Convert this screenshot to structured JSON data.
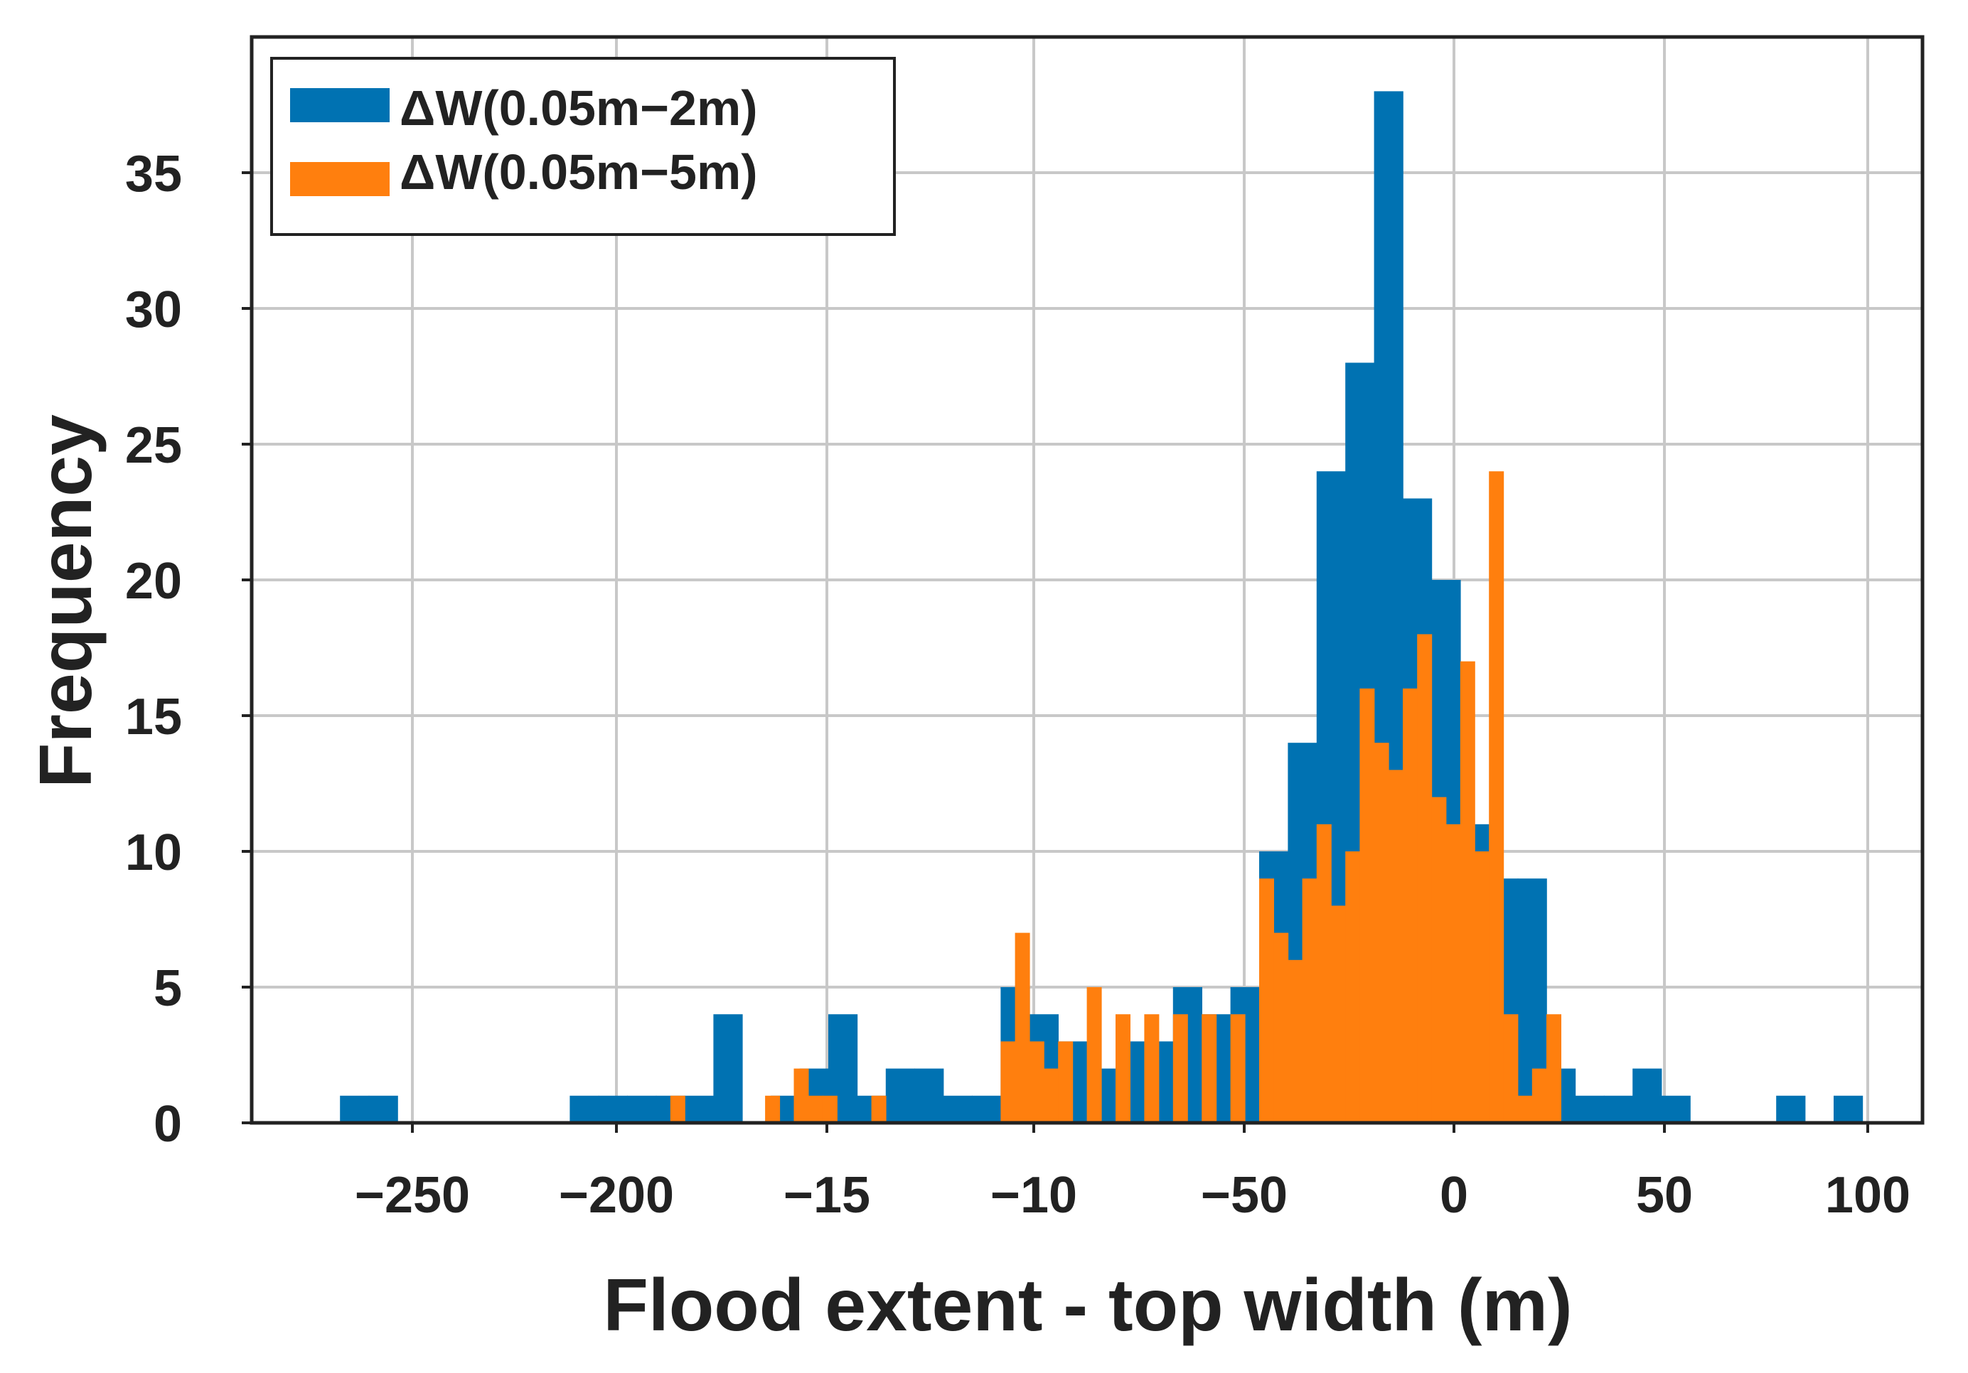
{
  "chart_data": {
    "type": "bar",
    "subtype": "overlaid-histogram",
    "title": "",
    "xlabel": "Flood extent - top width (m)",
    "ylabel": "Frequency",
    "ylim": [
      0,
      40
    ],
    "grid": true,
    "legend_position": "top-left",
    "x_tick_labels": [
      "−250",
      "−200",
      "−15",
      "−10",
      "−50",
      "0",
      "50",
      "100"
    ],
    "y_ticks": [
      0,
      5,
      10,
      15,
      20,
      25,
      30,
      35
    ],
    "y_tick_labels": [
      "0",
      "5",
      "10",
      "15",
      "20",
      "25",
      "30",
      "35"
    ],
    "series": [
      {
        "name": "ΔW(0.05m−2m)",
        "color": "#0072b2",
        "bins": [
          {
            "start": 0.5,
            "count": 1
          },
          {
            "start": 1.5,
            "count": 1
          },
          {
            "start": 8.5,
            "count": 1
          },
          {
            "start": 9.5,
            "count": 1
          },
          {
            "start": 10.5,
            "count": 1
          },
          {
            "start": 11.5,
            "count": 1
          },
          {
            "start": 12.5,
            "count": 1
          },
          {
            "start": 13.5,
            "count": 4
          },
          {
            "start": 15.5,
            "count": 1
          },
          {
            "start": 16.5,
            "count": 2
          },
          {
            "start": 17.5,
            "count": 4
          },
          {
            "start": 18.5,
            "count": 1
          },
          {
            "start": 19.5,
            "count": 2
          },
          {
            "start": 20.5,
            "count": 2
          },
          {
            "start": 21.5,
            "count": 1
          },
          {
            "start": 22.5,
            "count": 1
          },
          {
            "start": 23.5,
            "count": 5
          },
          {
            "start": 24.5,
            "count": 4
          },
          {
            "start": 25.5,
            "count": 3
          },
          {
            "start": 26.5,
            "count": 2
          },
          {
            "start": 27.5,
            "count": 3
          },
          {
            "start": 28.5,
            "count": 3
          },
          {
            "start": 29.5,
            "count": 5
          },
          {
            "start": 30.5,
            "count": 4
          },
          {
            "start": 31.5,
            "count": 5
          },
          {
            "start": 32.5,
            "count": 10
          },
          {
            "start": 33.5,
            "count": 14
          },
          {
            "start": 34.5,
            "count": 24
          },
          {
            "start": 35.5,
            "count": 28
          },
          {
            "start": 36.5,
            "count": 38
          },
          {
            "start": 37.5,
            "count": 23
          },
          {
            "start": 38.5,
            "count": 20
          },
          {
            "start": 39.5,
            "count": 11
          },
          {
            "start": 40.5,
            "count": 9
          },
          {
            "start": 41.5,
            "count": 9
          },
          {
            "start": 42.5,
            "count": 2
          },
          {
            "start": 43.5,
            "count": 1
          },
          {
            "start": 44.5,
            "count": 1
          },
          {
            "start": 45.5,
            "count": 2
          },
          {
            "start": 46.5,
            "count": 1
          },
          {
            "start": 50.5,
            "count": 1
          },
          {
            "start": 52.5,
            "count": 1
          }
        ]
      },
      {
        "name": "ΔW(0.05m−5m)",
        "color": "#ff7f0e",
        "bins": [
          {
            "start": 12.0,
            "count": 1
          },
          {
            "start": 15.3,
            "count": 1
          },
          {
            "start": 16.3,
            "count": 2
          },
          {
            "start": 16.8,
            "count": 1
          },
          {
            "start": 17.3,
            "count": 1
          },
          {
            "start": 19.0,
            "count": 1
          },
          {
            "start": 23.5,
            "count": 3
          },
          {
            "start": 24.0,
            "count": 7
          },
          {
            "start": 24.5,
            "count": 3
          },
          {
            "start": 25.0,
            "count": 2
          },
          {
            "start": 25.5,
            "count": 3
          },
          {
            "start": 26.5,
            "count": 5
          },
          {
            "start": 27.5,
            "count": 4
          },
          {
            "start": 28.5,
            "count": 4
          },
          {
            "start": 29.5,
            "count": 4
          },
          {
            "start": 30.5,
            "count": 4
          },
          {
            "start": 31.5,
            "count": 4
          },
          {
            "start": 32.5,
            "count": 9
          },
          {
            "start": 33.0,
            "count": 7
          },
          {
            "start": 33.5,
            "count": 6
          },
          {
            "start": 34.0,
            "count": 9
          },
          {
            "start": 34.5,
            "count": 11
          },
          {
            "start": 35.0,
            "count": 8
          },
          {
            "start": 35.5,
            "count": 10
          },
          {
            "start": 36.0,
            "count": 16
          },
          {
            "start": 36.5,
            "count": 14
          },
          {
            "start": 37.0,
            "count": 13
          },
          {
            "start": 37.5,
            "count": 16
          },
          {
            "start": 38.0,
            "count": 18
          },
          {
            "start": 38.5,
            "count": 12
          },
          {
            "start": 39.0,
            "count": 11
          },
          {
            "start": 39.5,
            "count": 17
          },
          {
            "start": 40.0,
            "count": 10
          },
          {
            "start": 40.5,
            "count": 24
          },
          {
            "start": 41.0,
            "count": 4
          },
          {
            "start": 41.5,
            "count": 1
          },
          {
            "start": 42.0,
            "count": 2
          },
          {
            "start": 42.5,
            "count": 4
          }
        ]
      }
    ]
  }
}
